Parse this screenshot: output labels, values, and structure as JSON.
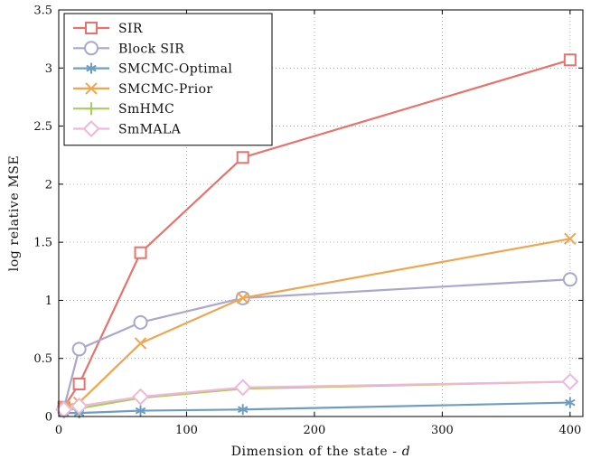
{
  "chart_data": {
    "type": "line",
    "xlabel": "Dimension of the state - ",
    "xlabel_var": "d",
    "ylabel": "log relative MSE",
    "xlim": [
      0,
      410
    ],
    "ylim": [
      0,
      3.5
    ],
    "x_ticks": [
      0,
      100,
      200,
      300,
      400
    ],
    "y_ticks": [
      0,
      0.5,
      1,
      1.5,
      2,
      2.5,
      3,
      3.5
    ],
    "x_tick_labels": [
      "0",
      "100",
      "200",
      "300",
      "400"
    ],
    "y_tick_labels": [
      "0",
      "0.5",
      "1",
      "1.5",
      "2",
      "2.5",
      "3",
      "3.5"
    ],
    "grid": true,
    "legend_position": "top-left",
    "x": [
      4,
      16,
      64,
      144,
      400
    ],
    "series": [
      {
        "name": "SIR",
        "values": [
          0.08,
          0.28,
          1.41,
          2.23,
          3.07
        ],
        "color": "#e8736c",
        "marker": "square"
      },
      {
        "name": "Block SIR",
        "values": [
          0.07,
          0.58,
          0.81,
          1.02,
          1.18
        ],
        "color": "#a9a8cc",
        "marker": "circle"
      },
      {
        "name": "SMCMC-Optimal",
        "values": [
          0.03,
          0.03,
          0.05,
          0.06,
          0.12
        ],
        "color": "#6d9dc0",
        "marker": "asterisk"
      },
      {
        "name": "SMCMC-Prior",
        "values": [
          0.09,
          0.12,
          0.63,
          1.02,
          1.53
        ],
        "color": "#f0a54f",
        "marker": "x"
      },
      {
        "name": "SmHMC",
        "values": [
          0.05,
          0.07,
          0.16,
          0.24,
          0.3
        ],
        "color": "#a6cf5a",
        "marker": "plus"
      },
      {
        "name": "SmMALA",
        "values": [
          0.06,
          0.09,
          0.17,
          0.25,
          0.3
        ],
        "color": "#f2b7d8",
        "marker": "diamond"
      }
    ]
  }
}
